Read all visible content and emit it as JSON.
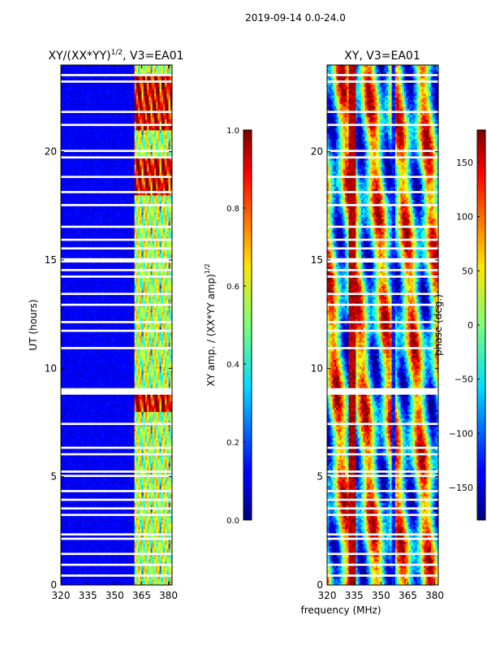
{
  "figure_title": "2019-09-14 0.0-24.0",
  "chart_data": [
    {
      "type": "heatmap",
      "title": "XY/(XX*YY)",
      "title_superscript": "1/2",
      "title_suffix": ", V3=EA01",
      "xlabel": "",
      "ylabel": "UT (hours)",
      "xlim": [
        320,
        382
      ],
      "ylim": [
        0,
        24
      ],
      "xticks": [
        "320",
        "335",
        "350",
        "365",
        "380"
      ],
      "xtick_values": [
        320,
        335,
        350,
        365,
        380
      ],
      "yticks": [
        "0",
        "5",
        "10",
        "15",
        "20"
      ],
      "ytick_values": [
        0,
        5,
        10,
        15,
        20
      ],
      "colorbar": {
        "label": "XY amp. / (XX*YY amp)",
        "label_superscript": "1/2",
        "range": [
          0.0,
          1.0
        ],
        "ticks": [
          "0.0",
          "0.2",
          "0.4",
          "0.6",
          "0.8",
          "1.0"
        ],
        "tick_values": [
          0.0,
          0.2,
          0.4,
          0.6,
          0.8,
          1.0
        ],
        "colormap": "jet"
      }
    },
    {
      "type": "heatmap",
      "title": "XY, V3=EA01",
      "xlabel": "frequency (MHz)",
      "ylabel": "",
      "xlim": [
        320,
        382
      ],
      "ylim": [
        0,
        24
      ],
      "xticks": [
        "320",
        "335",
        "350",
        "365",
        "380"
      ],
      "xtick_values": [
        320,
        335,
        350,
        365,
        380
      ],
      "yticks": [
        "0",
        "5",
        "10",
        "15",
        "20"
      ],
      "ytick_values": [
        0,
        5,
        10,
        15,
        20
      ],
      "colorbar": {
        "label": "phase (deg.)",
        "range": [
          -180,
          180
        ],
        "ticks": [
          "−150",
          "−100",
          "−50",
          "0",
          "50",
          "100",
          "150"
        ],
        "tick_values": [
          -150,
          -100,
          -50,
          0,
          50,
          100,
          150
        ],
        "colormap": "jet"
      }
    }
  ]
}
